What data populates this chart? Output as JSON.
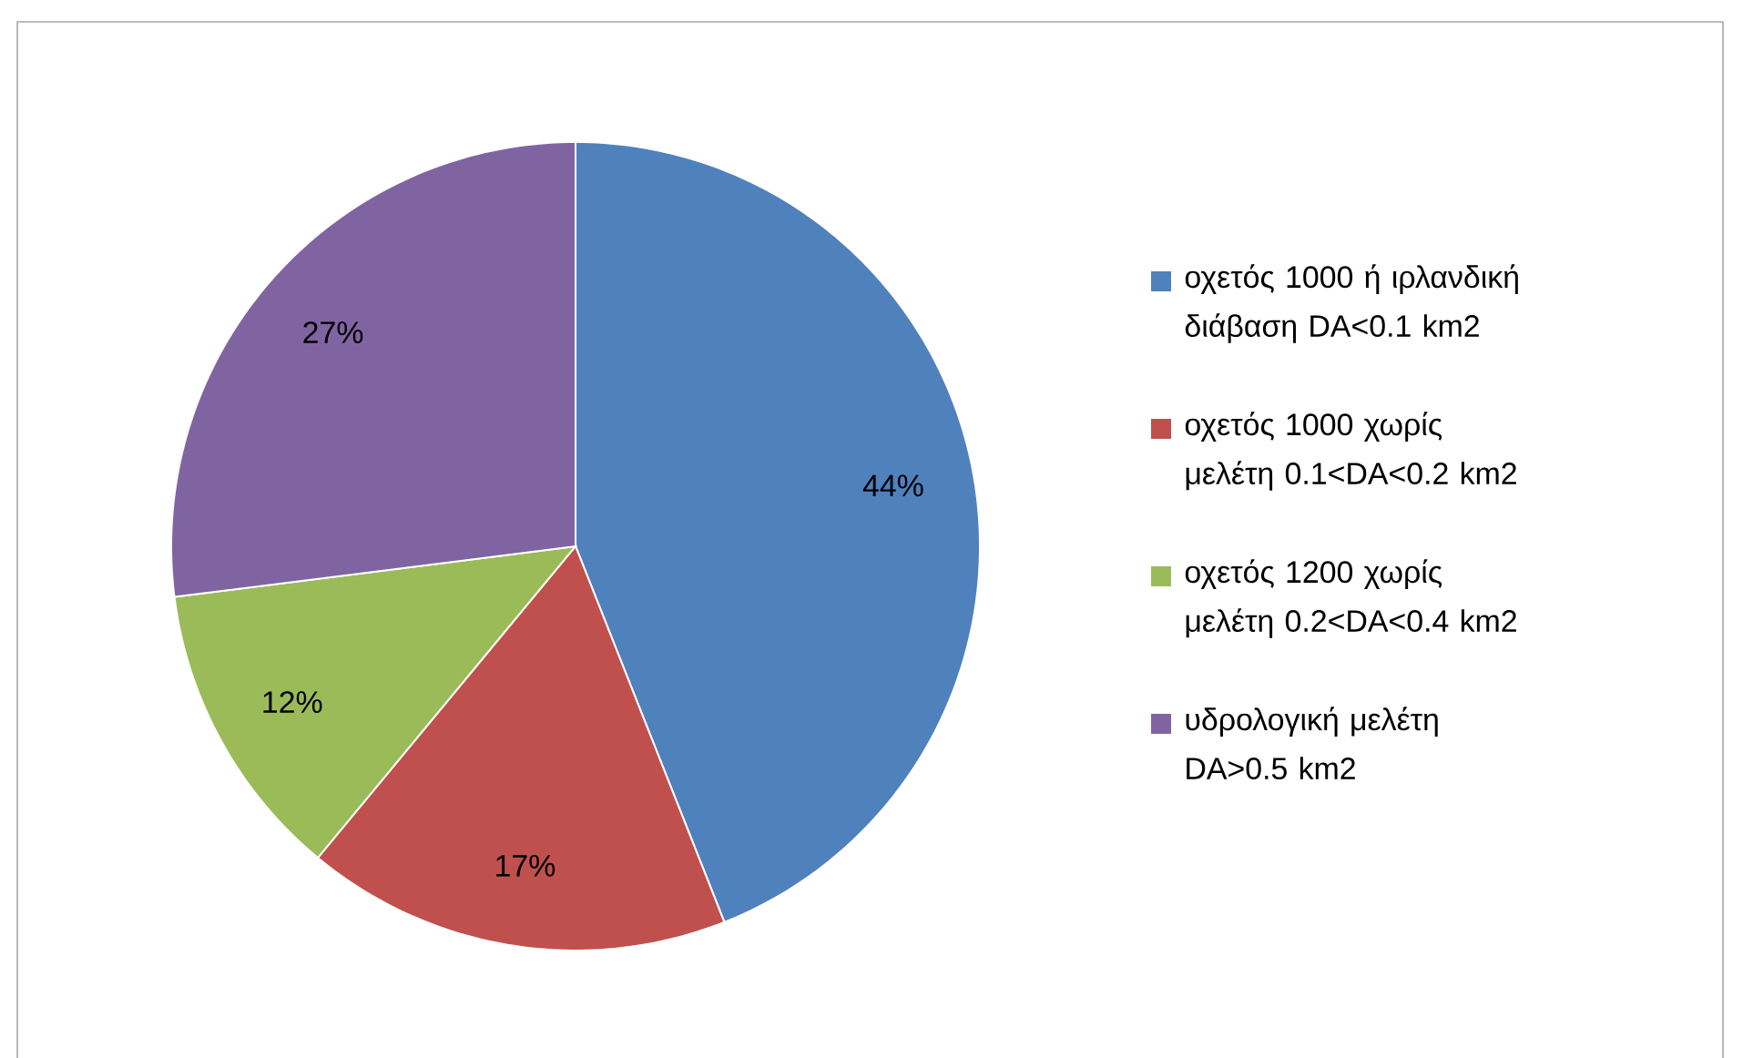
{
  "chart_data": {
    "type": "pie",
    "categories": [
      "οχετός 1000 ή ιρλανδική διάβαση DA<0.1 km2",
      "οχετός 1000 χωρίς μελέτη 0.1<DA<0.2 km2",
      "οχετός 1200 χωρίς μελέτη 0.2<DA<0.4 km2",
      "υδρολογική μελέτη DA>0.5 km2"
    ],
    "values": [
      44,
      17,
      12,
      27
    ],
    "value_labels": [
      "44%",
      "17%",
      "12%",
      "27%"
    ],
    "colors": [
      "#4f81bd",
      "#c0504d",
      "#9bbb59",
      "#8064a2"
    ],
    "legend": "right"
  }
}
